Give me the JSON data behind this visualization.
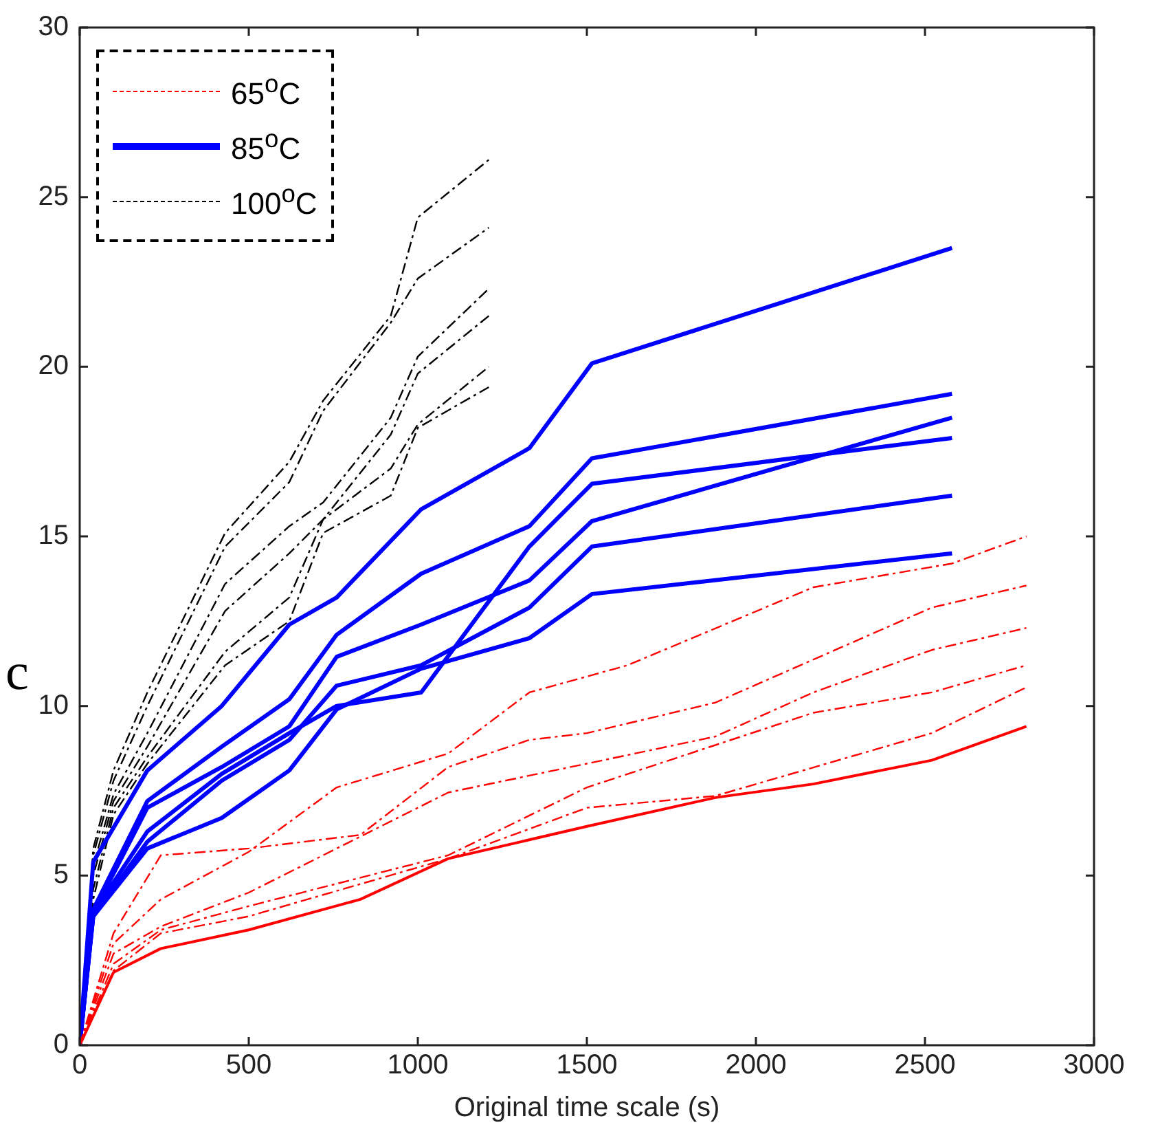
{
  "chart_data": {
    "type": "line",
    "xlabel": "Original time scale (s)",
    "ylabel": "c",
    "xlim": [
      0,
      3000
    ],
    "xticks": [
      0,
      500,
      1000,
      1500,
      2000,
      2500,
      3000
    ],
    "ylim": [
      0,
      30
    ],
    "yticks": [
      0,
      5,
      10,
      15,
      20,
      25,
      30
    ],
    "grid": false,
    "legend": "top left",
    "marker": "none",
    "series": [
      {
        "name": "65$^{o}$C",
        "color": "#ff0000",
        "line_style": "dashed",
        "x": [
          0,
          100,
          240,
          500,
          760,
          1090,
          1330,
          1620,
          2170,
          2580,
          2800
        ],
        "values": [
          0,
          3.0,
          4.3,
          5.7,
          7.6,
          8.6,
          10.4,
          11.2,
          13.5,
          14.2,
          15.0
        ]
      },
      {
        "color": "#ff0000",
        "line_style": "dashed",
        "x": [
          0,
          100,
          240,
          500,
          830,
          1090,
          1330,
          1500,
          1880,
          2520,
          2800
        ],
        "values": [
          0,
          3.3,
          5.6,
          5.8,
          6.2,
          8.2,
          9.0,
          9.2,
          10.1,
          12.9,
          13.55
        ]
      },
      {
        "color": "#ff0000",
        "line_style": "dashed",
        "x": [
          0,
          100,
          240,
          500,
          1090,
          1500,
          1880,
          2170,
          2520,
          2800
        ],
        "values": [
          0,
          2.7,
          3.5,
          4.5,
          7.45,
          8.3,
          9.1,
          10.4,
          11.65,
          12.3
        ]
      },
      {
        "color": "#ff0000",
        "line_style": "dashed",
        "x": [
          0,
          100,
          240,
          500,
          1090,
          1500,
          2170,
          2520,
          2800
        ],
        "values": [
          0,
          2.4,
          3.4,
          4.1,
          5.6,
          7.6,
          9.8,
          10.4,
          11.2
        ]
      },
      {
        "color": "#ff0000",
        "line_style": "dashed",
        "x": [
          0,
          100,
          240,
          500,
          1090,
          1500,
          1880,
          2520,
          2800
        ],
        "values": [
          0,
          2.2,
          3.3,
          3.8,
          5.5,
          7.0,
          7.35,
          9.2,
          10.55
        ]
      },
      {
        "color": "#ff0000",
        "line_style": "solid",
        "x": [
          0,
          100,
          240,
          500,
          830,
          1090,
          1500,
          1880,
          2170,
          2520,
          2800
        ],
        "values": [
          0,
          2.15,
          2.85,
          3.4,
          4.3,
          5.5,
          6.45,
          7.3,
          7.7,
          8.4,
          9.4
        ]
      },
      {
        "name": "85$^{o}$C",
        "color": "#0000ff",
        "line_style": "solid",
        "x": [
          0,
          40,
          200,
          420,
          620,
          760,
          1010,
          1330,
          1515,
          2580
        ],
        "values": [
          0,
          5.4,
          8.1,
          10.0,
          12.4,
          13.2,
          15.8,
          17.6,
          20.1,
          23.5
        ]
      },
      {
        "color": "#0000ff",
        "line_style": "solid",
        "x": [
          0,
          40,
          200,
          420,
          620,
          760,
          1010,
          1330,
          1515,
          2580
        ],
        "values": [
          0,
          4.0,
          7.2,
          8.8,
          10.2,
          12.1,
          13.9,
          15.3,
          17.3,
          19.2
        ]
      },
      {
        "color": "#0000ff",
        "line_style": "solid",
        "x": [
          0,
          40,
          200,
          420,
          620,
          760,
          1010,
          1330,
          1515,
          2580
        ],
        "values": [
          0,
          3.9,
          6.3,
          8.0,
          9.2,
          10.0,
          10.4,
          14.7,
          16.55,
          17.9
        ]
      },
      {
        "color": "#0000ff",
        "line_style": "solid",
        "x": [
          0,
          40,
          200,
          420,
          620,
          760,
          1010,
          1330,
          1515,
          2580
        ],
        "values": [
          0,
          3.9,
          7.0,
          8.2,
          9.4,
          11.45,
          12.4,
          13.7,
          15.45,
          18.5
        ]
      },
      {
        "color": "#0000ff",
        "line_style": "solid",
        "x": [
          0,
          40,
          200,
          420,
          620,
          760,
          1010,
          1330,
          1515,
          2580
        ],
        "values": [
          0,
          3.8,
          6.0,
          7.8,
          9.0,
          10.6,
          11.2,
          12.9,
          14.7,
          16.2
        ]
      },
      {
        "color": "#0000ff",
        "line_style": "solid",
        "x": [
          0,
          40,
          200,
          420,
          620,
          760,
          1010,
          1330,
          1515,
          2580
        ],
        "values": [
          0,
          3.8,
          5.8,
          6.7,
          8.1,
          9.9,
          11.1,
          12.0,
          13.3,
          14.5
        ]
      },
      {
        "name": "100$^{o}$C",
        "color": "#000000",
        "line_style": "dashed",
        "x": [
          0,
          40,
          100,
          200,
          430,
          620,
          720,
          920,
          1000,
          1210
        ],
        "values": [
          0,
          5.8,
          8.1,
          10.4,
          15.1,
          17.2,
          19.0,
          21.5,
          24.4,
          26.1
        ]
      },
      {
        "color": "#000000",
        "line_style": "dashed",
        "x": [
          0,
          40,
          100,
          200,
          430,
          620,
          720,
          920,
          1000,
          1210
        ],
        "values": [
          0,
          5.6,
          7.8,
          10.0,
          14.7,
          16.6,
          18.7,
          21.3,
          22.6,
          24.1
        ]
      },
      {
        "color": "#000000",
        "line_style": "dashed",
        "x": [
          0,
          40,
          100,
          200,
          430,
          620,
          720,
          920,
          1000,
          1210
        ],
        "values": [
          0,
          5.3,
          7.4,
          9.2,
          13.6,
          15.3,
          16.0,
          18.5,
          20.3,
          22.3
        ]
      },
      {
        "color": "#000000",
        "line_style": "dashed",
        "x": [
          0,
          40,
          100,
          200,
          430,
          620,
          720,
          920,
          1000,
          1210
        ],
        "values": [
          0,
          5.0,
          7.2,
          8.8,
          12.8,
          14.5,
          15.5,
          18.0,
          19.8,
          21.5
        ]
      },
      {
        "color": "#000000",
        "line_style": "dashed",
        "x": [
          0,
          40,
          100,
          200,
          430,
          620,
          720,
          920,
          1000,
          1210
        ],
        "values": [
          0,
          4.6,
          7.0,
          8.5,
          11.6,
          13.2,
          15.5,
          17.0,
          18.3,
          20.0
        ]
      },
      {
        "color": "#000000",
        "line_style": "dashed",
        "x": [
          0,
          40,
          100,
          200,
          430,
          620,
          720,
          920,
          1000,
          1210
        ],
        "values": [
          0,
          4.3,
          6.8,
          8.3,
          11.2,
          12.5,
          15.1,
          16.2,
          18.2,
          19.4
        ]
      }
    ]
  }
}
